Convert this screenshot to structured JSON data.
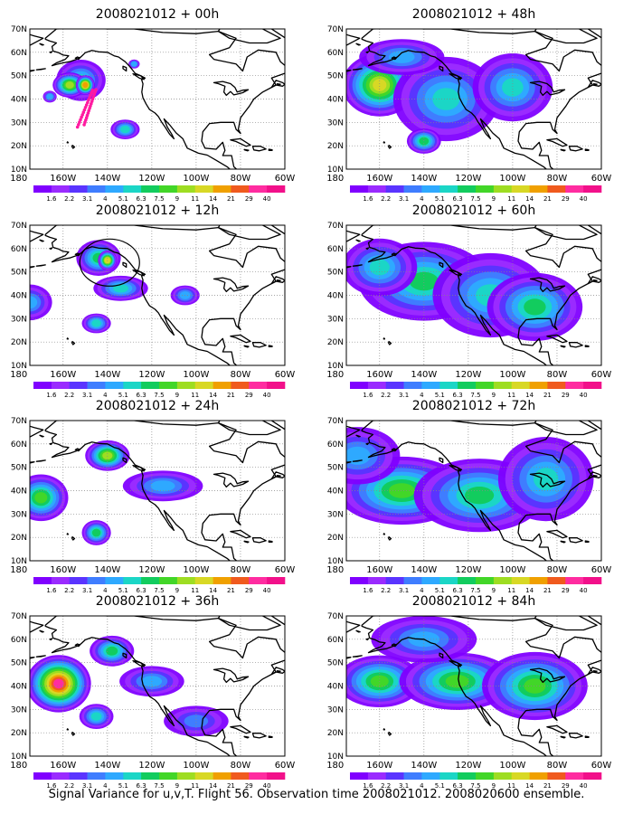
{
  "colorbar": {
    "levels": [
      "1.6",
      "2.2",
      "3.1",
      "4",
      "5.1",
      "6.3",
      "7.5",
      "9",
      "11",
      "14",
      "21",
      "29",
      "40"
    ],
    "colors": [
      "#8000ff",
      "#9a2bff",
      "#5a34ff",
      "#3f7dff",
      "#2ea9ff",
      "#1bd6c6",
      "#12cc5e",
      "#42d628",
      "#9edd22",
      "#d8d825",
      "#f0a000",
      "#f05a1e",
      "#ff2ca0",
      "#f2108a"
    ]
  },
  "axes": {
    "lat_labels": [
      "70N",
      "60N",
      "50N",
      "40N",
      "30N",
      "20N",
      "10N"
    ],
    "lon_labels": [
      "180",
      "160W",
      "140W",
      "120W",
      "100W",
      "80W",
      "60W"
    ],
    "lat_range": [
      10,
      70
    ],
    "lon_range": [
      -175,
      -60
    ],
    "grid": "dotted"
  },
  "panels": [
    {
      "title": "2008021012 + 00h",
      "blobs": [
        [
          -152,
          48,
          9,
          7,
          5
        ],
        [
          -157,
          46,
          6,
          4,
          8
        ],
        [
          -150,
          46,
          3,
          3,
          10
        ],
        [
          -132,
          27,
          5,
          3,
          5
        ],
        [
          -166,
          41,
          2,
          1.5,
          4
        ],
        [
          -128,
          55,
          1.5,
          1,
          4
        ]
      ],
      "track": true,
      "circle": false
    },
    {
      "title": "2008021012 + 12h",
      "blobs": [
        [
          -144,
          56,
          8,
          6,
          6
        ],
        [
          -140,
          55,
          3,
          3,
          9
        ],
        [
          -175,
          37,
          8,
          6,
          4
        ],
        [
          -134,
          43,
          10,
          4,
          5
        ],
        [
          -145,
          28,
          5,
          3,
          5
        ],
        [
          -105,
          40,
          5,
          3,
          4
        ]
      ],
      "track": false,
      "circle": true
    },
    {
      "title": "2008021012 + 24h",
      "blobs": [
        [
          -170,
          37,
          10,
          8,
          7
        ],
        [
          -140,
          55,
          8,
          5,
          8
        ],
        [
          -115,
          42,
          15,
          5,
          4
        ],
        [
          -145,
          22,
          5,
          4,
          6
        ]
      ],
      "track": false,
      "circle": false
    },
    {
      "title": "2008021012 + 36h",
      "blobs": [
        [
          -162,
          41,
          12,
          10,
          12
        ],
        [
          -138,
          55,
          8,
          5,
          6
        ],
        [
          -120,
          42,
          12,
          5,
          4
        ],
        [
          -145,
          27,
          6,
          4,
          5
        ],
        [
          -100,
          25,
          12,
          5,
          3
        ]
      ],
      "track": false,
      "circle": false
    },
    {
      "title": "2008021012 + 48h",
      "blobs": [
        [
          -160,
          46,
          14,
          11,
          9
        ],
        [
          -130,
          40,
          20,
          15,
          5
        ],
        [
          -100,
          45,
          15,
          12,
          5
        ],
        [
          -140,
          22,
          6,
          4,
          6
        ],
        [
          -150,
          58,
          16,
          6,
          4
        ]
      ],
      "track": false,
      "circle": false
    },
    {
      "title": "2008021012 + 60h",
      "blobs": [
        [
          -140,
          46,
          25,
          14,
          6
        ],
        [
          -110,
          40,
          22,
          15,
          5
        ],
        [
          -90,
          35,
          18,
          12,
          6
        ],
        [
          -160,
          52,
          14,
          10,
          5
        ]
      ],
      "track": false,
      "circle": false
    },
    {
      "title": "2008021012 + 72h",
      "blobs": [
        [
          -150,
          40,
          25,
          12,
          7
        ],
        [
          -115,
          38,
          25,
          13,
          6
        ],
        [
          -85,
          45,
          18,
          15,
          5
        ],
        [
          -170,
          55,
          16,
          10,
          4
        ]
      ],
      "track": false,
      "circle": false
    },
    {
      "title": "2008021012 + 84h",
      "blobs": [
        [
          -160,
          42,
          16,
          9,
          7
        ],
        [
          -125,
          42,
          22,
          10,
          7
        ],
        [
          -90,
          40,
          20,
          12,
          7
        ],
        [
          -140,
          60,
          20,
          8,
          4
        ]
      ],
      "track": false,
      "circle": false
    }
  ],
  "caption": "Signal Variance for u,v,T. Flight 56. Observation time 2008021012. 2008020600 ensemble."
}
